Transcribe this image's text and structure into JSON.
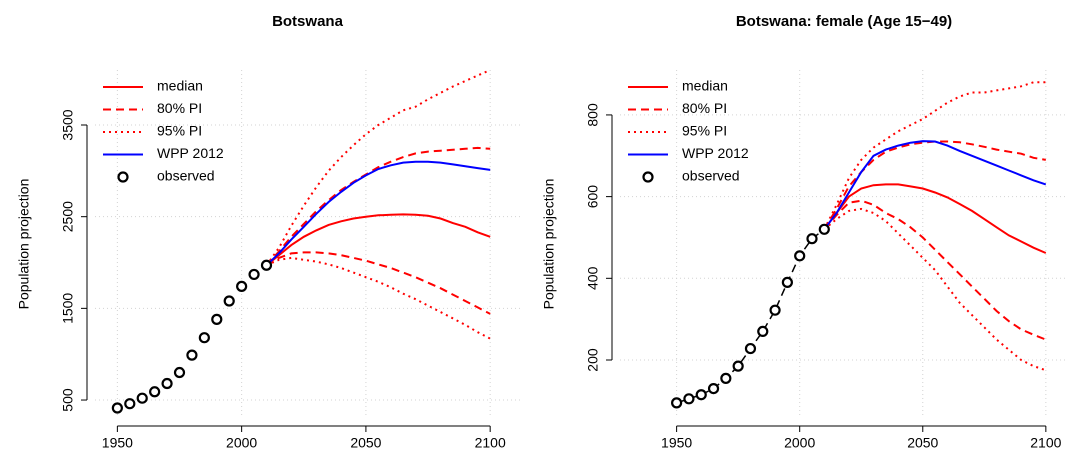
{
  "chart_data": [
    {
      "type": "line",
      "title": "Botswana",
      "y_label": "Population projection",
      "x": [
        1950,
        1955,
        1960,
        1965,
        1970,
        1975,
        1980,
        1985,
        1990,
        1995,
        2000,
        2005,
        2010,
        2015,
        2020,
        2025,
        2030,
        2035,
        2040,
        2045,
        2050,
        2055,
        2060,
        2065,
        2070,
        2075,
        2080,
        2085,
        2090,
        2095,
        2100
      ],
      "xlim": [
        1941,
        2112
      ],
      "xticks": [
        1950,
        2000,
        2050,
        2100
      ],
      "ylim": [
        304,
        4100
      ],
      "yticks": [
        500,
        1500,
        2500,
        3500
      ],
      "grid": true,
      "legend": "top-left",
      "series": [
        {
          "name": "median",
          "color": "#ff0000",
          "dash": "solid",
          "values": [
            null,
            null,
            null,
            null,
            null,
            null,
            null,
            null,
            null,
            null,
            null,
            null,
            1970,
            2080,
            2190,
            2280,
            2350,
            2410,
            2450,
            2480,
            2500,
            2515,
            2520,
            2525,
            2520,
            2510,
            2480,
            2430,
            2390,
            2330,
            2280
          ]
        },
        {
          "name": "80% PI",
          "color": "#ff0000",
          "dash": "dashed",
          "values": [
            null,
            null,
            null,
            null,
            null,
            null,
            null,
            null,
            null,
            null,
            null,
            null,
            1970,
            2120,
            2280,
            2420,
            2560,
            2680,
            2790,
            2880,
            2960,
            3040,
            3100,
            3150,
            3190,
            3210,
            3220,
            3230,
            3240,
            3250,
            3240
          ],
          "lower_values": [
            null,
            null,
            null,
            null,
            null,
            null,
            null,
            null,
            null,
            null,
            null,
            null,
            1970,
            2050,
            2100,
            2110,
            2110,
            2100,
            2080,
            2050,
            2020,
            1980,
            1940,
            1890,
            1840,
            1780,
            1720,
            1650,
            1580,
            1510,
            1440
          ]
        },
        {
          "name": "95% PI",
          "color": "#ff0000",
          "dash": "dotted",
          "values": [
            null,
            null,
            null,
            null,
            null,
            null,
            null,
            null,
            null,
            null,
            null,
            null,
            1970,
            2160,
            2400,
            2620,
            2820,
            3000,
            3150,
            3280,
            3400,
            3500,
            3580,
            3660,
            3700,
            3780,
            3850,
            3920,
            3980,
            4040,
            4100
          ],
          "lower_values": [
            null,
            null,
            null,
            null,
            null,
            null,
            null,
            null,
            null,
            null,
            null,
            null,
            1970,
            2030,
            2050,
            2030,
            2010,
            1980,
            1940,
            1890,
            1840,
            1790,
            1730,
            1660,
            1600,
            1530,
            1460,
            1390,
            1320,
            1240,
            1170
          ]
        },
        {
          "name": "WPP 2012",
          "color": "#0000ff",
          "dash": "solid",
          "values": [
            null,
            null,
            null,
            null,
            null,
            null,
            null,
            null,
            null,
            null,
            null,
            null,
            1970,
            2100,
            2250,
            2390,
            2530,
            2660,
            2770,
            2870,
            2950,
            3020,
            3060,
            3090,
            3100,
            3100,
            3090,
            3070,
            3050,
            3030,
            3010
          ]
        },
        {
          "name": "observed",
          "color": "#000000",
          "style": "points",
          "values": [
            413,
            460,
            520,
            590,
            680,
            800,
            990,
            1180,
            1380,
            1580,
            1740,
            1870,
            1970,
            null,
            null,
            null,
            null,
            null,
            null,
            null,
            null,
            null,
            null,
            null,
            null,
            null,
            null,
            null,
            null,
            null,
            null
          ]
        }
      ]
    },
    {
      "type": "line",
      "title": "Botswana: female (Age 15−49)",
      "y_label": "Population projection",
      "x": [
        1950,
        1955,
        1960,
        1965,
        1970,
        1975,
        1980,
        1985,
        1990,
        1995,
        2000,
        2005,
        2010,
        2015,
        2020,
        2025,
        2030,
        2035,
        2040,
        2045,
        2050,
        2055,
        2060,
        2065,
        2070,
        2075,
        2080,
        2085,
        2090,
        2095,
        2100
      ],
      "xlim": [
        1927,
        2109
      ],
      "xticks": [
        1950,
        2000,
        2050,
        2100
      ],
      "ylim": [
        58,
        910
      ],
      "yticks": [
        200,
        400,
        600,
        800
      ],
      "grid": true,
      "legend": "top-left",
      "series": [
        {
          "name": "median",
          "color": "#ff0000",
          "dash": "solid",
          "values": [
            null,
            null,
            null,
            null,
            null,
            null,
            null,
            null,
            null,
            null,
            null,
            null,
            520,
            560,
            600,
            620,
            628,
            630,
            630,
            625,
            620,
            610,
            598,
            582,
            565,
            545,
            525,
            505,
            490,
            475,
            462
          ]
        },
        {
          "name": "80% PI",
          "color": "#ff0000",
          "dash": "dashed",
          "values": [
            null,
            null,
            null,
            null,
            null,
            null,
            null,
            null,
            null,
            null,
            null,
            null,
            520,
            570,
            625,
            660,
            690,
            710,
            720,
            728,
            732,
            735,
            735,
            733,
            728,
            722,
            715,
            710,
            705,
            695,
            690
          ],
          "lower_values": [
            null,
            null,
            null,
            null,
            null,
            null,
            null,
            null,
            null,
            null,
            null,
            null,
            520,
            555,
            585,
            590,
            580,
            560,
            545,
            525,
            500,
            470,
            440,
            410,
            380,
            350,
            320,
            295,
            275,
            262,
            250
          ]
        },
        {
          "name": "95% PI",
          "color": "#ff0000",
          "dash": "dotted",
          "values": [
            null,
            null,
            null,
            null,
            null,
            null,
            null,
            null,
            null,
            null,
            null,
            null,
            520,
            580,
            645,
            690,
            720,
            740,
            760,
            775,
            790,
            810,
            830,
            845,
            855,
            855,
            860,
            865,
            870,
            880,
            880
          ],
          "lower_values": [
            null,
            null,
            null,
            null,
            null,
            null,
            null,
            null,
            null,
            null,
            null,
            null,
            520,
            545,
            565,
            570,
            560,
            540,
            510,
            480,
            450,
            420,
            380,
            340,
            310,
            280,
            250,
            225,
            200,
            185,
            175
          ]
        },
        {
          "name": "WPP 2012",
          "color": "#0000ff",
          "dash": "solid",
          "values": [
            null,
            null,
            null,
            null,
            null,
            null,
            null,
            null,
            null,
            null,
            null,
            null,
            520,
            560,
            610,
            660,
            700,
            715,
            725,
            732,
            736,
            735,
            725,
            712,
            700,
            688,
            676,
            664,
            652,
            640,
            630
          ]
        },
        {
          "name": "observed",
          "color": "#000000",
          "style": "points",
          "line": "dashed",
          "values": [
            95,
            105,
            115,
            130,
            155,
            185,
            228,
            270,
            322,
            390,
            455,
            497,
            520,
            null,
            null,
            null,
            null,
            null,
            null,
            null,
            null,
            null,
            null,
            null,
            null,
            null,
            null,
            null,
            null,
            null,
            null
          ]
        }
      ]
    }
  ]
}
